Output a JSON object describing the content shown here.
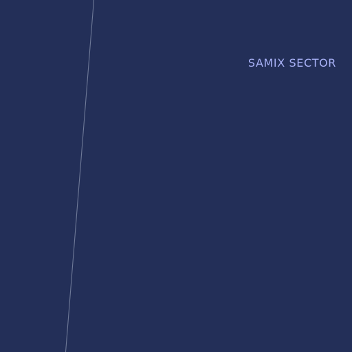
{
  "map": {
    "background_color": "#232f58",
    "boundary_color": "#6f7a98",
    "label_color": "#a9b2f7",
    "sector_label": "SAMIX SECTOR"
  }
}
